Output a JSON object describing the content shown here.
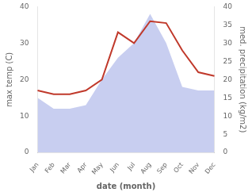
{
  "chart_data": {
    "type": "line",
    "xlabel": "date (month)",
    "ylabel": "max temp (C)",
    "y2label": "med. precipitation (kg/m2)",
    "categories": [
      "Jan",
      "Feb",
      "Mar",
      "Apr",
      "May",
      "Jun",
      "Jul",
      "Aug",
      "Sep",
      "Oct",
      "Nov",
      "Dec"
    ],
    "series": [
      {
        "type": "area",
        "axis": "y2",
        "color": "#aab4e8",
        "values": [
          15,
          12,
          12,
          13,
          20,
          26,
          30,
          38,
          30,
          18,
          17,
          17
        ]
      },
      {
        "type": "line",
        "color": "#c0392b",
        "values": [
          17.0,
          16.0,
          16.0,
          17.0,
          20.0,
          33.0,
          30.0,
          36.0,
          35.5,
          28.0,
          22.0,
          21.0
        ]
      }
    ],
    "ylim": [
      0,
      40
    ],
    "yticks": [
      0,
      10,
      20,
      30,
      40
    ],
    "y2lim": [
      0,
      40
    ],
    "y2ticks": [
      0,
      5,
      10,
      15,
      20,
      25,
      30,
      35,
      40
    ],
    "grid": false
  }
}
